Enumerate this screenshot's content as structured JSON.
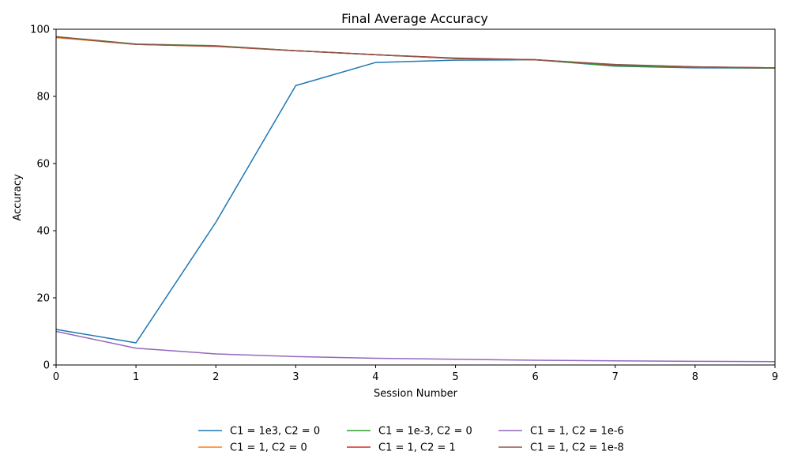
{
  "chart_data": {
    "type": "line",
    "title": "Final Average Accuracy",
    "xlabel": "Session Number",
    "ylabel": "Accuracy",
    "xlim": [
      0,
      9
    ],
    "ylim": [
      0,
      100
    ],
    "xticks": [
      "0",
      "1",
      "2",
      "3",
      "4",
      "5",
      "6",
      "7",
      "8",
      "9"
    ],
    "yticks": [
      "0",
      "20",
      "40",
      "60",
      "80",
      "100"
    ],
    "grid": false,
    "legend_position": "bottom-center",
    "x": [
      0,
      1,
      2,
      3,
      4,
      5,
      6,
      7,
      8,
      9
    ],
    "series": [
      {
        "name": "C1 = 1e3, C2 = 0",
        "color": "#1f77b4",
        "values": [
          10.6,
          6.6,
          42.5,
          83.2,
          90.1,
          90.8,
          90.9,
          89.0,
          88.5,
          88.4
        ]
      },
      {
        "name": "C1 = 1, C2 = 0",
        "color": "#ff7f0e",
        "values": [
          97.5,
          95.5,
          94.9,
          93.6,
          92.4,
          91.3,
          90.9,
          89.3,
          88.7,
          88.5
        ]
      },
      {
        "name": "C1 = 1e-3, C2 = 0",
        "color": "#2ca02c",
        "values": [
          97.8,
          95.6,
          95.1,
          93.6,
          92.4,
          91.3,
          90.9,
          89.1,
          88.7,
          88.4
        ]
      },
      {
        "name": "C1 = 1, C2 = 1",
        "color": "#d62728",
        "values": [
          97.7,
          95.5,
          94.9,
          93.6,
          92.4,
          91.4,
          90.9,
          89.4,
          88.8,
          88.5
        ]
      },
      {
        "name": "C1 = 1, C2 = 1e-6",
        "color": "#9467bd",
        "values": [
          10.0,
          5.0,
          3.3,
          2.5,
          2.0,
          1.7,
          1.4,
          1.25,
          1.1,
          1.0
        ]
      },
      {
        "name": "C1 = 1, C2 = 1e-8",
        "color": "#8c564b",
        "values": [
          97.7,
          95.5,
          95.0,
          93.6,
          92.4,
          91.3,
          90.9,
          89.5,
          88.8,
          88.5
        ]
      }
    ]
  }
}
